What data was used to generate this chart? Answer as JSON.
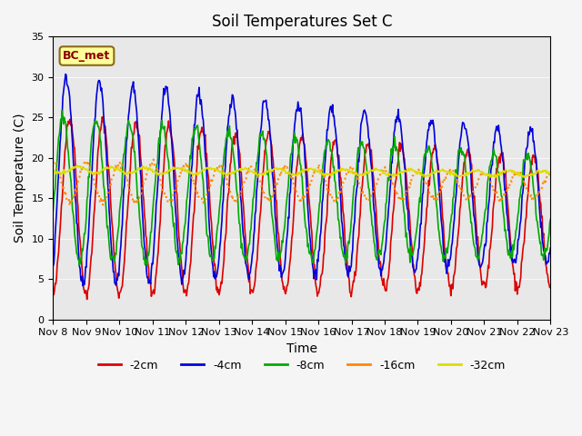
{
  "title": "Soil Temperatures Set C",
  "xlabel": "Time",
  "ylabel": "Soil Temperature (C)",
  "ylim": [
    0,
    35
  ],
  "xlim": [
    0,
    15
  ],
  "background_color": "#f5f5f5",
  "plot_bg_color": "#e8e8e8",
  "annotation_label": "BC_met",
  "annotation_bg": "#ffff99",
  "annotation_border": "#8b6914",
  "annotation_text_color": "#8b0000",
  "colors": {
    "-2cm": "#dd0000",
    "-4cm": "#0000dd",
    "-8cm": "#00aa00",
    "-16cm": "#ff8800",
    "-32cm": "#dddd00"
  },
  "x_tick_labels": [
    "Nov 8",
    "Nov 9",
    "Nov 10",
    "Nov 11",
    "Nov 12",
    "Nov 13",
    "Nov 14",
    "Nov 15",
    "Nov 16",
    "Nov 17",
    "Nov 18",
    "Nov 19",
    "Nov 20",
    "Nov 21",
    "Nov 22",
    "Nov 23"
  ],
  "num_days": 15,
  "points_per_day": 48
}
